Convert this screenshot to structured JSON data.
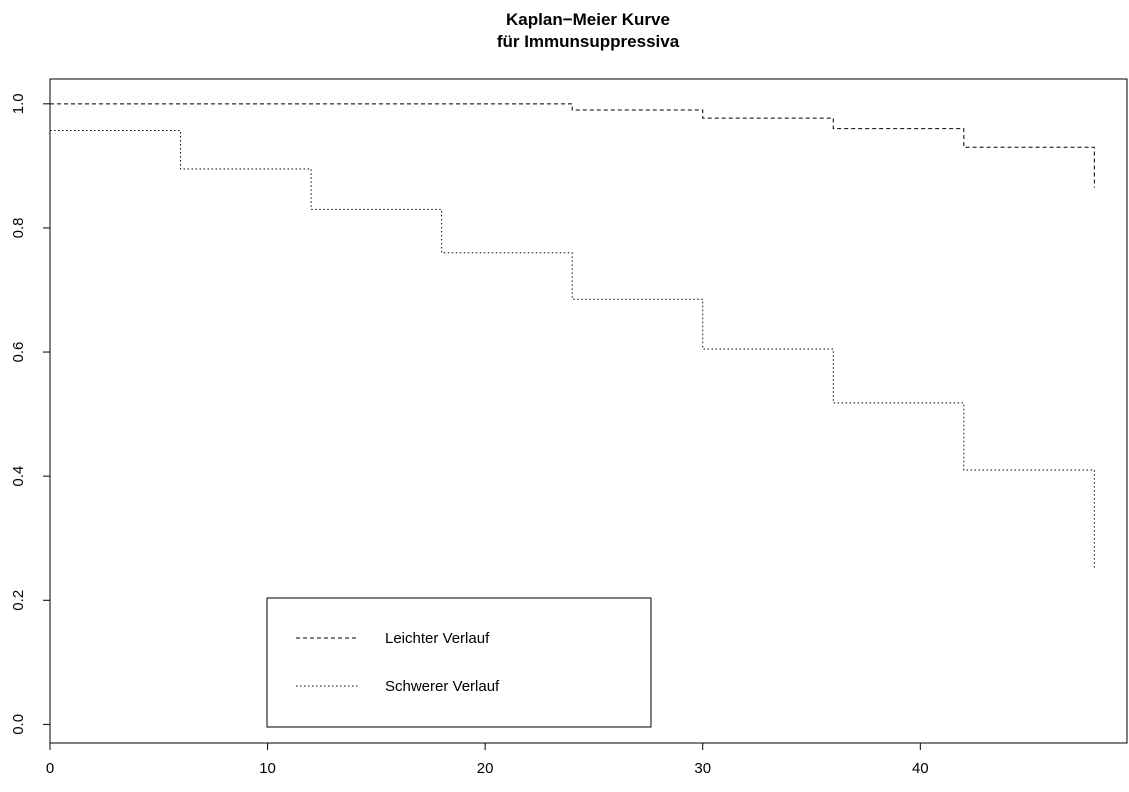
{
  "chart_data": {
    "type": "line",
    "title_lines": [
      "Kaplan−Meier Kurve",
      "für Immunsuppressiva"
    ],
    "xlabel": "",
    "ylabel": "",
    "xlim": [
      0,
      49.5
    ],
    "ylim": [
      -0.03,
      1.04
    ],
    "x_ticks": [
      0,
      10,
      20,
      30,
      40
    ],
    "x_tick_labels": [
      "0",
      "10",
      "20",
      "30",
      "40"
    ],
    "y_ticks": [
      0.0,
      0.2,
      0.4,
      0.6,
      0.8,
      1.0
    ],
    "y_tick_labels": [
      "0.0",
      "0.2",
      "0.4",
      "0.6",
      "0.8",
      "1.0"
    ],
    "grid": false,
    "legend_position": "bottom-left",
    "series": [
      {
        "name": "Leichter Verlauf",
        "line_style": "dashed",
        "x": [
          0,
          24,
          30,
          36,
          42,
          48
        ],
        "y": [
          1.0,
          0.99,
          0.977,
          0.96,
          0.93,
          0.865
        ]
      },
      {
        "name": "Schwerer Verlauf",
        "line_style": "dotted",
        "x": [
          0,
          6,
          12,
          18,
          24,
          30,
          36,
          42,
          48
        ],
        "y": [
          0.957,
          0.895,
          0.83,
          0.76,
          0.685,
          0.605,
          0.518,
          0.41,
          0.25
        ]
      }
    ]
  }
}
